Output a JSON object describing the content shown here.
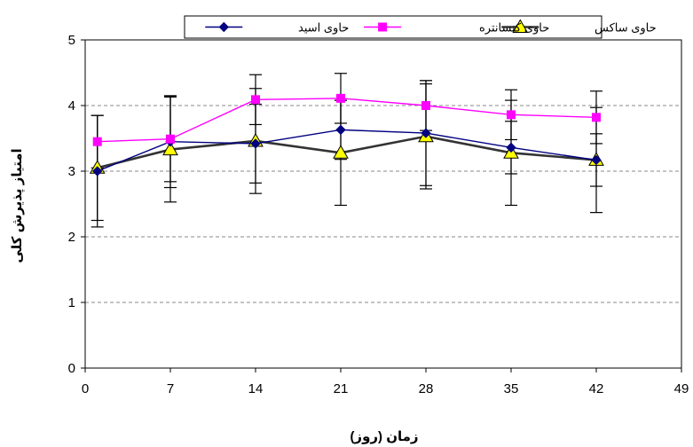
{
  "chart_data": {
    "type": "line",
    "xlabel": "زمان (روز)",
    "ylabel": "امتیاز پذیرش کلی",
    "xlim": [
      0,
      49
    ],
    "ylim": [
      0,
      5
    ],
    "xticks": [
      0,
      7,
      14,
      21,
      28,
      35,
      42,
      49
    ],
    "yticks": [
      0,
      1,
      2,
      3,
      4,
      5
    ],
    "grid": "horizontal dashed",
    "legend_position": "top",
    "x": [
      1,
      7,
      14,
      21,
      28,
      35,
      42
    ],
    "series": [
      {
        "name": "حاوی اسید",
        "color": "#000080",
        "marker": "diamond",
        "values": [
          3.0,
          3.45,
          3.42,
          3.63,
          3.58,
          3.36,
          3.17
        ],
        "errors": [
          0.85,
          0.7,
          0.6,
          0.45,
          0.8,
          0.4,
          0.4
        ]
      },
      {
        "name": "حاوی کنسانتره",
        "color": "#ff00ff",
        "marker": "square",
        "values": [
          3.45,
          3.49,
          4.09,
          4.11,
          4.0,
          3.86,
          3.82
        ],
        "errors": [
          0.4,
          0.65,
          0.38,
          0.38,
          0.38,
          0.38,
          0.4
        ]
      },
      {
        "name": "حاوی ساکس",
        "color": "#333333",
        "marker": "triangle",
        "marker_fill": "#ffff00",
        "values": [
          3.05,
          3.33,
          3.46,
          3.28,
          3.53,
          3.28,
          3.17
        ],
        "errors": [
          0.8,
          0.8,
          0.8,
          0.8,
          0.8,
          0.8,
          0.8
        ]
      }
    ]
  }
}
